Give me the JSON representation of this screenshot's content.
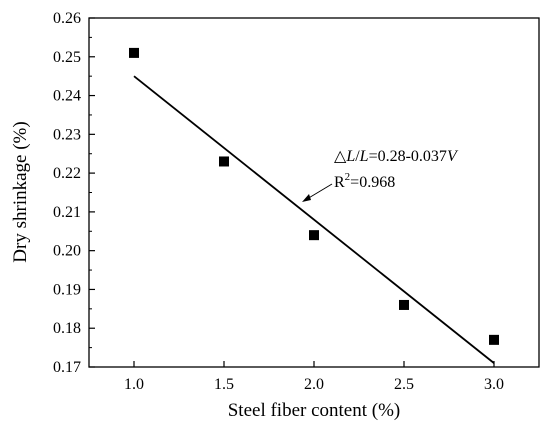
{
  "chart_data": {
    "type": "scatter",
    "xlabel": "Steel fiber content (%)",
    "ylabel": "Dry shrinkage (%)",
    "xlim": [
      0.75,
      3.25
    ],
    "ylim": [
      0.17,
      0.26
    ],
    "xticks": [
      1.0,
      1.5,
      2.0,
      2.5,
      3.0
    ],
    "xtick_labels": [
      "1.0",
      "1.5",
      "2.0",
      "2.5",
      "3.0"
    ],
    "yticks": [
      0.17,
      0.18,
      0.19,
      0.2,
      0.21,
      0.22,
      0.23,
      0.24,
      0.25,
      0.26
    ],
    "ytick_labels": [
      "0.17",
      "0.18",
      "0.19",
      "0.20",
      "0.21",
      "0.22",
      "0.23",
      "0.24",
      "0.25",
      "0.26"
    ],
    "grid": false,
    "legend": "none",
    "series": [
      {
        "marker": "square",
        "color": "#000000",
        "x": [
          1.0,
          1.5,
          2.0,
          2.5,
          3.0
        ],
        "y": [
          0.251,
          0.223,
          0.204,
          0.186,
          0.177
        ]
      }
    ],
    "fit_line": {
      "x": [
        1.0,
        3.0
      ],
      "y": [
        0.245,
        0.171
      ],
      "color": "#000000"
    },
    "annotations": {
      "equation": {
        "prefix": "△",
        "L1": "L",
        "slash": "/",
        "L2": "L",
        "rhs": "=0.28-0.037",
        "var": "V"
      },
      "r2": {
        "base": "R",
        "sup": "2",
        "value": "=0.968"
      }
    }
  }
}
